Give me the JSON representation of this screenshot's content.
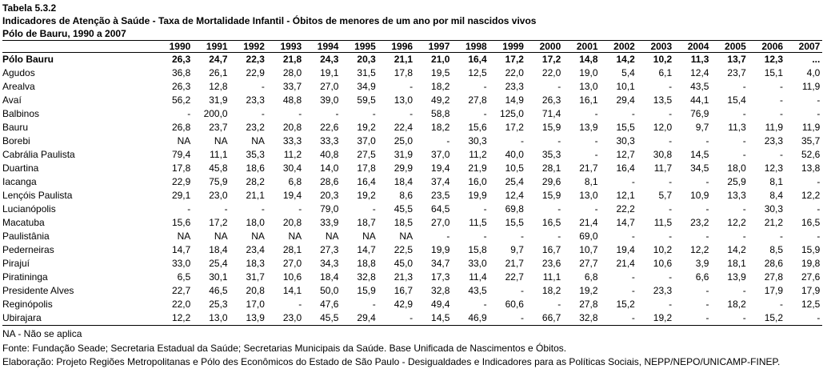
{
  "title": "Tabela 5.3.2",
  "subtitle": "Indicadores de Atenção à Saúde - Taxa de Mortalidade Infantil - Óbitos de menores de um ano por mil nascidos vivos",
  "region": "Pólo de Bauru,  1990 a 2007",
  "years": [
    "1990",
    "1991",
    "1992",
    "1993",
    "1994",
    "1995",
    "1996",
    "1997",
    "1998",
    "1999",
    "2000",
    "2001",
    "2002",
    "2003",
    "2004",
    "2005",
    "2006",
    "2007"
  ],
  "rows": [
    {
      "name": "Pólo Bauru",
      "bold": true,
      "values": [
        "26,3",
        "24,7",
        "22,3",
        "21,8",
        "24,3",
        "20,3",
        "21,1",
        "21,0",
        "16,4",
        "17,2",
        "17,2",
        "14,8",
        "14,2",
        "10,2",
        "11,3",
        "13,7",
        "12,3",
        "..."
      ]
    },
    {
      "name": "Agudos",
      "values": [
        "36,8",
        "26,1",
        "22,9",
        "28,0",
        "19,1",
        "31,5",
        "17,8",
        "19,5",
        "12,5",
        "22,0",
        "22,0",
        "19,0",
        "5,4",
        "6,1",
        "12,4",
        "23,7",
        "15,1",
        "4,0"
      ]
    },
    {
      "name": "Arealva",
      "values": [
        "26,3",
        "12,8",
        "-",
        "33,7",
        "27,0",
        "34,9",
        "-",
        "18,2",
        "-",
        "23,3",
        "-",
        "13,0",
        "10,1",
        "-",
        "43,5",
        "-",
        "-",
        "11,9"
      ]
    },
    {
      "name": "Avaí",
      "values": [
        "56,2",
        "31,9",
        "23,3",
        "48,8",
        "39,0",
        "59,5",
        "13,0",
        "49,2",
        "27,8",
        "14,9",
        "26,3",
        "16,1",
        "29,4",
        "13,5",
        "44,1",
        "15,4",
        "-",
        "-"
      ]
    },
    {
      "name": "Balbinos",
      "values": [
        "-",
        "200,0",
        "-",
        "-",
        "-",
        "-",
        "-",
        "58,8",
        "-",
        "125,0",
        "71,4",
        "-",
        "-",
        "-",
        "76,9",
        "-",
        "-",
        "-"
      ]
    },
    {
      "name": "Bauru",
      "values": [
        "26,8",
        "23,7",
        "23,2",
        "20,8",
        "22,6",
        "19,2",
        "22,4",
        "18,2",
        "15,6",
        "17,2",
        "15,9",
        "13,9",
        "15,5",
        "12,0",
        "9,7",
        "11,3",
        "11,9",
        "11,9"
      ]
    },
    {
      "name": "Borebi",
      "values": [
        "NA",
        "NA",
        "NA",
        "33,3",
        "33,3",
        "37,0",
        "25,0",
        "-",
        "30,3",
        "-",
        "-",
        "-",
        "30,3",
        "-",
        "-",
        "-",
        "23,3",
        "35,7"
      ]
    },
    {
      "name": "Cabrália Paulista",
      "values": [
        "79,4",
        "11,1",
        "35,3",
        "11,2",
        "40,8",
        "27,5",
        "31,9",
        "37,0",
        "11,2",
        "40,0",
        "35,3",
        "-",
        "12,7",
        "30,8",
        "14,5",
        "-",
        "-",
        "52,6"
      ]
    },
    {
      "name": "Duartina",
      "values": [
        "17,8",
        "45,8",
        "18,6",
        "30,4",
        "14,0",
        "17,8",
        "29,9",
        "19,4",
        "21,9",
        "10,5",
        "28,1",
        "21,7",
        "16,4",
        "11,7",
        "34,5",
        "18,0",
        "12,3",
        "13,8"
      ]
    },
    {
      "name": "Iacanga",
      "values": [
        "22,9",
        "75,9",
        "28,2",
        "6,8",
        "28,6",
        "16,4",
        "18,4",
        "37,4",
        "16,0",
        "25,4",
        "29,6",
        "8,1",
        "-",
        "-",
        "-",
        "25,9",
        "8,1",
        "-"
      ]
    },
    {
      "name": "Lençóis Paulista",
      "values": [
        "29,1",
        "23,0",
        "21,1",
        "19,4",
        "20,3",
        "19,2",
        "8,6",
        "23,5",
        "19,9",
        "12,4",
        "15,9",
        "13,0",
        "12,1",
        "5,7",
        "10,9",
        "13,3",
        "8,4",
        "12,2"
      ]
    },
    {
      "name": "Lucianópolis",
      "values": [
        "-",
        "-",
        "-",
        "-",
        "79,0",
        "-",
        "45,5",
        "64,5",
        "-",
        "69,8",
        "-",
        "-",
        "22,2",
        "-",
        "-",
        "-",
        "30,3",
        "-"
      ]
    },
    {
      "name": "Macatuba",
      "values": [
        "15,6",
        "17,2",
        "18,0",
        "20,8",
        "33,9",
        "18,7",
        "18,5",
        "27,0",
        "11,5",
        "15,5",
        "16,5",
        "21,4",
        "14,7",
        "11,5",
        "23,2",
        "12,2",
        "21,2",
        "16,5"
      ]
    },
    {
      "name": "Paulistânia",
      "values": [
        "NA",
        "NA",
        "NA",
        "NA",
        "NA",
        "NA",
        "NA",
        "-",
        "-",
        "-",
        "-",
        "69,0",
        "-",
        "-",
        "-",
        "-",
        "-",
        "-"
      ]
    },
    {
      "name": "Pederneiras",
      "values": [
        "14,7",
        "18,4",
        "23,4",
        "28,1",
        "27,3",
        "14,7",
        "22,5",
        "19,9",
        "15,8",
        "9,7",
        "16,7",
        "10,7",
        "19,4",
        "10,2",
        "12,2",
        "14,2",
        "8,5",
        "15,9"
      ]
    },
    {
      "name": "Pirajuí",
      "values": [
        "33,0",
        "25,4",
        "18,3",
        "27,0",
        "34,3",
        "18,8",
        "45,0",
        "34,7",
        "33,0",
        "21,7",
        "23,6",
        "27,7",
        "21,4",
        "10,6",
        "3,9",
        "18,1",
        "28,6",
        "19,8"
      ]
    },
    {
      "name": "Piratininga",
      "values": [
        "6,5",
        "30,1",
        "31,7",
        "10,6",
        "18,4",
        "32,8",
        "21,3",
        "17,3",
        "11,4",
        "22,7",
        "11,1",
        "6,8",
        "-",
        "-",
        "6,6",
        "13,9",
        "27,8",
        "27,6"
      ]
    },
    {
      "name": "Presidente Alves",
      "values": [
        "22,7",
        "46,5",
        "20,8",
        "14,1",
        "50,0",
        "15,9",
        "16,7",
        "32,8",
        "43,5",
        "-",
        "18,2",
        "19,2",
        "-",
        "23,3",
        "-",
        "-",
        "17,9",
        "17,9"
      ]
    },
    {
      "name": "Reginópolis",
      "values": [
        "22,0",
        "25,3",
        "17,0",
        "-",
        "47,6",
        "-",
        "42,9",
        "49,4",
        "-",
        "60,6",
        "-",
        "27,8",
        "15,2",
        "-",
        "-",
        "18,2",
        "-",
        "12,5"
      ]
    },
    {
      "name": "Ubirajara",
      "values": [
        "12,2",
        "13,0",
        "13,9",
        "23,0",
        "45,5",
        "29,4",
        "-",
        "14,5",
        "46,9",
        "-",
        "66,7",
        "32,8",
        "-",
        "19,2",
        "-",
        "-",
        "15,2",
        "-"
      ]
    }
  ],
  "notes": {
    "na": "NA - Não se aplica",
    "source": "Fonte: Fundação Seade; Secretaria Estadual da Saúde; Secretarias Municipais da Saúde. Base Unificada de Nascimentos e Óbitos.",
    "elaboration": "Elaboração: Projeto Regiões Metropolitanas e Pólo des Econômicos do Estado de São Paulo - Desigualdades e Indicadores para as Políticas Sociais, NEPP/NEPO/UNICAMP-FINEP."
  }
}
